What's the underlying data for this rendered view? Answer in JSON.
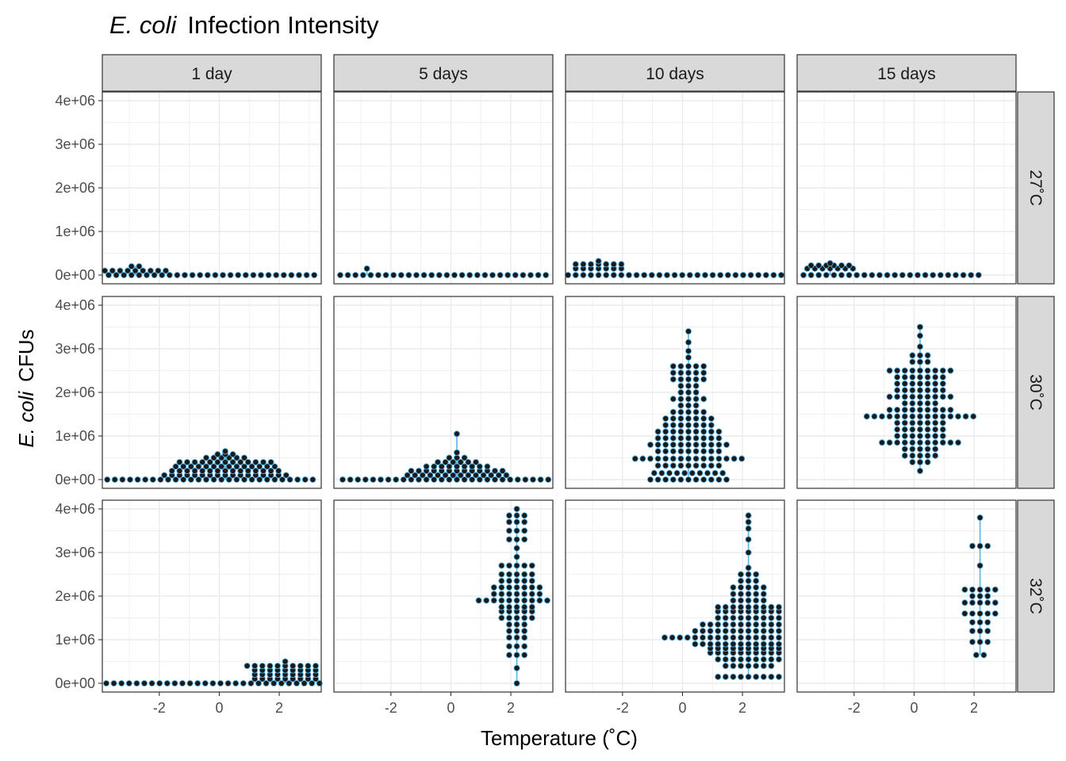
{
  "title": {
    "italic": "E. coli",
    "rest": "Infection Intensity"
  },
  "axes": {
    "xlabel": "Temperature (˚C)",
    "ylabel_italic": "E. coli",
    "ylabel_rest": "CFUs",
    "x_ticks": [
      "-2",
      "0",
      "2"
    ],
    "y_ticks": [
      "0e+00",
      "1e+06",
      "2e+06",
      "3e+06",
      "4e+06"
    ]
  },
  "colors": {
    "points": "#1a1a1a",
    "accent": "#56B4E9",
    "strip_bg": "#d9d9d9",
    "grid": "#ebebeb"
  },
  "chart_data": {
    "type": "scatter",
    "title": "E. coli Infection Intensity",
    "xlabel": "Temperature (˚C)",
    "ylabel": "E. coli CFUs",
    "xlim": [
      -3.9,
      3.4
    ],
    "ylim": [
      -200000,
      4200000
    ],
    "grid": true,
    "facet_columns": [
      "1 day",
      "5 days",
      "10 days",
      "15 days"
    ],
    "facet_rows": [
      "27˚C",
      "30˚C",
      "32˚C"
    ],
    "panels": [
      {
        "row": "27˚C",
        "col": "1 day",
        "x_center": -2.8,
        "bins": [
          {
            "y": 0,
            "n": 50
          },
          {
            "y": 100000,
            "n": 9
          },
          {
            "y": 200000,
            "n": 2
          }
        ]
      },
      {
        "row": "27˚C",
        "col": "5 days",
        "x_center": -2.8,
        "bins": [
          {
            "y": 0,
            "n": 60
          },
          {
            "y": 150000,
            "n": 1
          }
        ]
      },
      {
        "row": "27˚C",
        "col": "10 days",
        "x_center": -2.8,
        "bins": [
          {
            "y": 0,
            "n": 55
          },
          {
            "y": 150000,
            "n": 7
          },
          {
            "y": 250000,
            "n": 7
          },
          {
            "y": 320000,
            "n": 1
          }
        ]
      },
      {
        "row": "27˚C",
        "col": "15 days",
        "x_center": -2.8,
        "bins": [
          {
            "y": 0,
            "n": 40
          },
          {
            "y": 150000,
            "n": 7
          },
          {
            "y": 220000,
            "n": 6
          },
          {
            "y": 270000,
            "n": 1
          }
        ]
      },
      {
        "row": "30˚C",
        "col": "1 day",
        "x_center": 0.2,
        "bins": [
          {
            "y": 0,
            "n": 58
          },
          {
            "y": 100000,
            "n": 17
          },
          {
            "y": 200000,
            "n": 15
          },
          {
            "y": 300000,
            "n": 14
          },
          {
            "y": 400000,
            "n": 13
          },
          {
            "y": 500000,
            "n": 6
          },
          {
            "y": 580000,
            "n": 3
          },
          {
            "y": 650000,
            "n": 1
          }
        ]
      },
      {
        "row": "30˚C",
        "col": "5 days",
        "x_center": 0.2,
        "bins": [
          {
            "y": 0,
            "n": 55
          },
          {
            "y": 100000,
            "n": 14
          },
          {
            "y": 200000,
            "n": 13
          },
          {
            "y": 300000,
            "n": 9
          },
          {
            "y": 400000,
            "n": 6
          },
          {
            "y": 500000,
            "n": 3
          },
          {
            "y": 620000,
            "n": 1
          },
          {
            "y": 1050000,
            "n": 1
          }
        ]
      },
      {
        "row": "30˚C",
        "col": "10 days",
        "x_center": 0.2,
        "bins": [
          {
            "y": 0,
            "n": 11
          },
          {
            "y": 150000,
            "n": 10
          },
          {
            "y": 320000,
            "n": 9
          },
          {
            "y": 480000,
            "n": 15
          },
          {
            "y": 650000,
            "n": 9
          },
          {
            "y": 800000,
            "n": 11
          },
          {
            "y": 950000,
            "n": 9
          },
          {
            "y": 1100000,
            "n": 9
          },
          {
            "y": 1250000,
            "n": 7
          },
          {
            "y": 1400000,
            "n": 7
          },
          {
            "y": 1550000,
            "n": 5
          },
          {
            "y": 1700000,
            "n": 3
          },
          {
            "y": 1850000,
            "n": 5
          },
          {
            "y": 2000000,
            "n": 3
          },
          {
            "y": 2150000,
            "n": 3
          },
          {
            "y": 2300000,
            "n": 5
          },
          {
            "y": 2450000,
            "n": 5
          },
          {
            "y": 2600000,
            "n": 5
          },
          {
            "y": 2800000,
            "n": 1
          },
          {
            "y": 2950000,
            "n": 1
          },
          {
            "y": 3150000,
            "n": 1
          },
          {
            "y": 3400000,
            "n": 1
          }
        ]
      },
      {
        "row": "30˚C",
        "col": "15 days",
        "x_center": 0.2,
        "bins": [
          {
            "y": 200000,
            "n": 1
          },
          {
            "y": 400000,
            "n": 3
          },
          {
            "y": 550000,
            "n": 5
          },
          {
            "y": 700000,
            "n": 5
          },
          {
            "y": 850000,
            "n": 11
          },
          {
            "y": 1000000,
            "n": 7
          },
          {
            "y": 1150000,
            "n": 7
          },
          {
            "y": 1300000,
            "n": 7
          },
          {
            "y": 1450000,
            "n": 15
          },
          {
            "y": 1600000,
            "n": 9
          },
          {
            "y": 1750000,
            "n": 5
          },
          {
            "y": 1900000,
            "n": 9
          },
          {
            "y": 2050000,
            "n": 7
          },
          {
            "y": 2200000,
            "n": 7
          },
          {
            "y": 2350000,
            "n": 7
          },
          {
            "y": 2500000,
            "n": 9
          },
          {
            "y": 2700000,
            "n": 3
          },
          {
            "y": 2850000,
            "n": 3
          },
          {
            "y": 3050000,
            "n": 1
          },
          {
            "y": 3300000,
            "n": 1
          },
          {
            "y": 3500000,
            "n": 1
          }
        ]
      },
      {
        "row": "32˚C",
        "col": "1 day",
        "x_center": 2.2,
        "bins": [
          {
            "y": 0,
            "n": 58
          },
          {
            "y": 100000,
            "n": 9
          },
          {
            "y": 200000,
            "n": 9
          },
          {
            "y": 300000,
            "n": 9
          },
          {
            "y": 400000,
            "n": 11
          },
          {
            "y": 500000,
            "n": 1
          }
        ]
      },
      {
        "row": "32˚C",
        "col": "5 days",
        "x_center": 2.2,
        "bins": [
          {
            "y": 0,
            "n": 1
          },
          {
            "y": 350000,
            "n": 1
          },
          {
            "y": 650000,
            "n": 3
          },
          {
            "y": 850000,
            "n": 3
          },
          {
            "y": 1050000,
            "n": 3
          },
          {
            "y": 1200000,
            "n": 3
          },
          {
            "y": 1350000,
            "n": 3
          },
          {
            "y": 1500000,
            "n": 5
          },
          {
            "y": 1650000,
            "n": 5
          },
          {
            "y": 1750000,
            "n": 5
          },
          {
            "y": 1900000,
            "n": 11
          },
          {
            "y": 2050000,
            "n": 7
          },
          {
            "y": 2200000,
            "n": 7
          },
          {
            "y": 2350000,
            "n": 5
          },
          {
            "y": 2500000,
            "n": 5
          },
          {
            "y": 2700000,
            "n": 5
          },
          {
            "y": 2900000,
            "n": 1
          },
          {
            "y": 3100000,
            "n": 1
          },
          {
            "y": 3300000,
            "n": 3
          },
          {
            "y": 3500000,
            "n": 3
          },
          {
            "y": 3700000,
            "n": 3
          },
          {
            "y": 3850000,
            "n": 3
          },
          {
            "y": 4000000,
            "n": 1
          }
        ]
      },
      {
        "row": "32˚C",
        "col": "10 days",
        "x_center": 2.2,
        "bins": [
          {
            "y": 150000,
            "n": 9
          },
          {
            "y": 400000,
            "n": 7
          },
          {
            "y": 550000,
            "n": 9
          },
          {
            "y": 700000,
            "n": 11
          },
          {
            "y": 800000,
            "n": 11
          },
          {
            "y": 900000,
            "n": 15
          },
          {
            "y": 1050000,
            "n": 23
          },
          {
            "y": 1200000,
            "n": 15
          },
          {
            "y": 1350000,
            "n": 13
          },
          {
            "y": 1500000,
            "n": 9
          },
          {
            "y": 1650000,
            "n": 9
          },
          {
            "y": 1750000,
            "n": 9
          },
          {
            "y": 1900000,
            "n": 5
          },
          {
            "y": 2050000,
            "n": 5
          },
          {
            "y": 2200000,
            "n": 5
          },
          {
            "y": 2350000,
            "n": 3
          },
          {
            "y": 2500000,
            "n": 3
          },
          {
            "y": 2650000,
            "n": 1
          },
          {
            "y": 3000000,
            "n": 1
          },
          {
            "y": 3300000,
            "n": 1
          },
          {
            "y": 3550000,
            "n": 1
          },
          {
            "y": 3700000,
            "n": 1
          },
          {
            "y": 3850000,
            "n": 1
          }
        ]
      },
      {
        "row": "32˚C",
        "col": "15 days",
        "x_center": 2.2,
        "bins": [
          {
            "y": 650000,
            "n": 2
          },
          {
            "y": 950000,
            "n": 3
          },
          {
            "y": 1200000,
            "n": 3
          },
          {
            "y": 1400000,
            "n": 3
          },
          {
            "y": 1600000,
            "n": 5
          },
          {
            "y": 1850000,
            "n": 5
          },
          {
            "y": 2000000,
            "n": 3
          },
          {
            "y": 2150000,
            "n": 5
          },
          {
            "y": 2700000,
            "n": 1
          },
          {
            "y": 3150000,
            "n": 3
          },
          {
            "y": 3800000,
            "n": 1
          }
        ]
      }
    ]
  }
}
